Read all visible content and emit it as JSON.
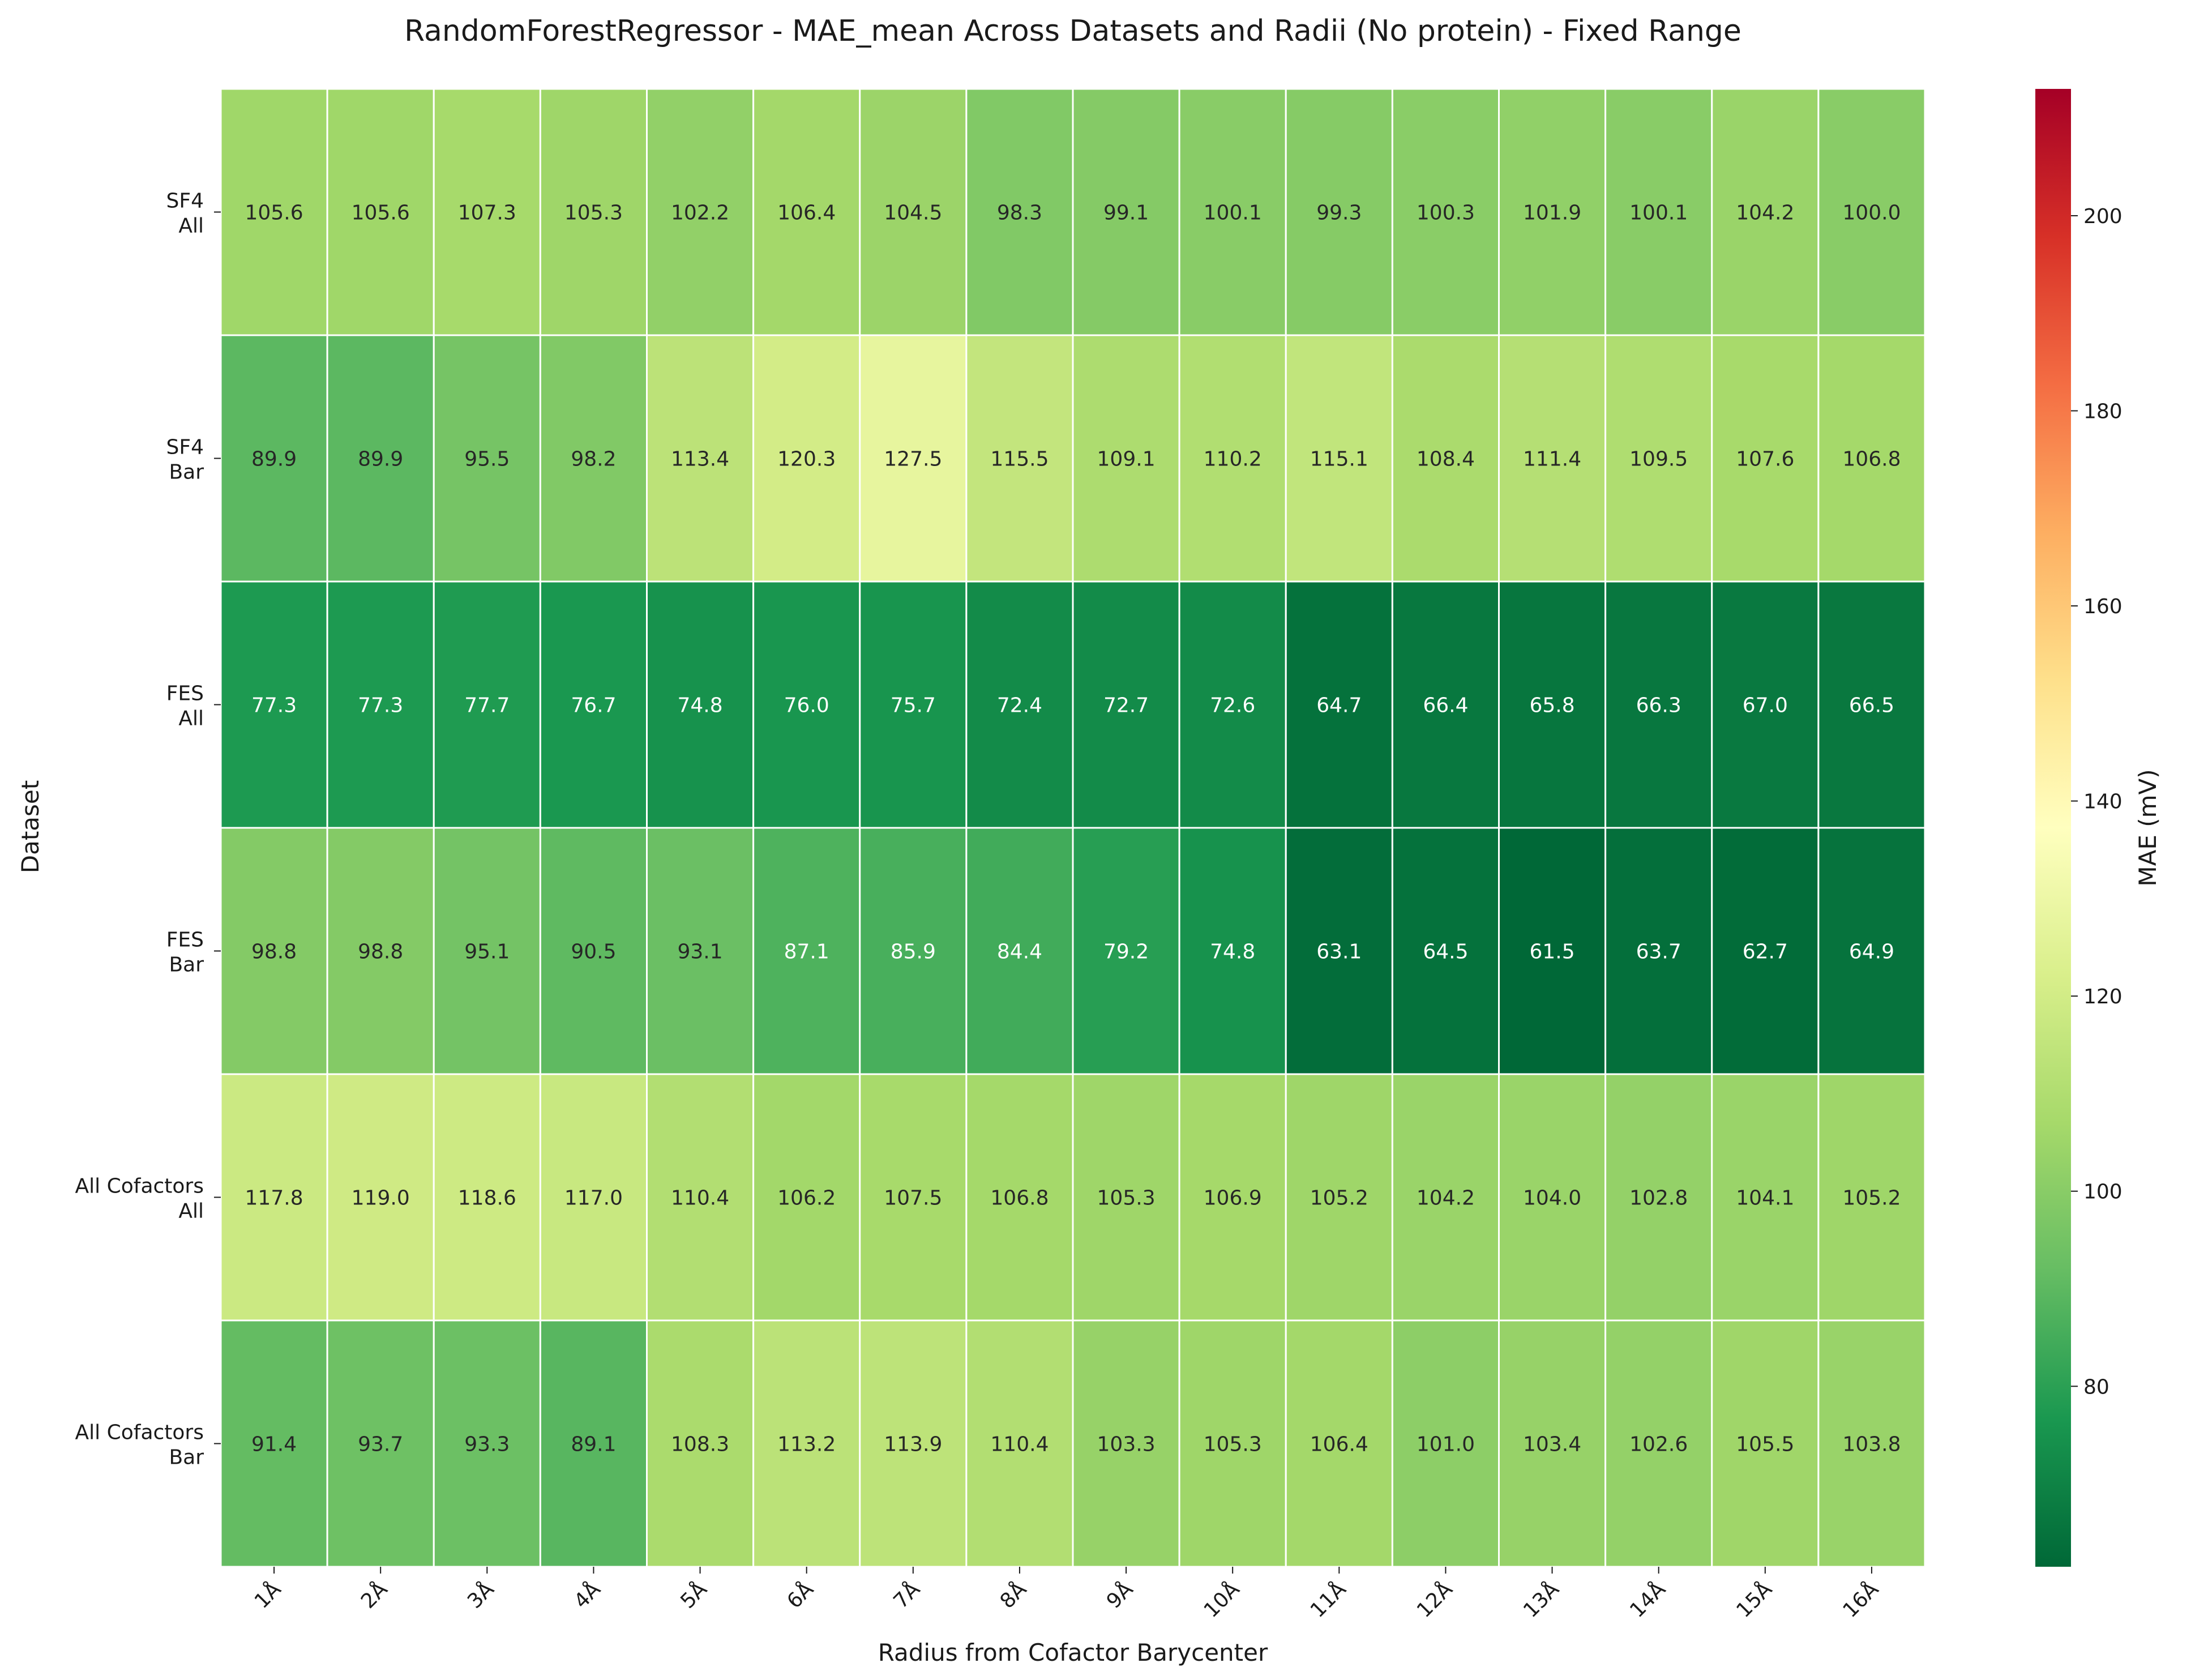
{
  "chart_data": {
    "type": "heatmap",
    "title": "RandomForestRegressor - MAE_mean Across Datasets and Radii (No protein) - Fixed Range",
    "xlabel": "Radius from Cofactor Barycenter",
    "ylabel": "Dataset",
    "colorbar_label": "MAE (mV)",
    "colormap": "RdYlGn_r",
    "vmin": 61.5,
    "vmax": 213,
    "colorbar_ticks": [
      80,
      100,
      120,
      140,
      160,
      180,
      200
    ],
    "x_categories": [
      "1Å",
      "2Å",
      "3Å",
      "4Å",
      "5Å",
      "6Å",
      "7Å",
      "8Å",
      "9Å",
      "10Å",
      "11Å",
      "12Å",
      "13Å",
      "14Å",
      "15Å",
      "16Å"
    ],
    "y_categories": [
      {
        "line1": "SF4",
        "line2": "All"
      },
      {
        "line1": "SF4",
        "line2": "Bar"
      },
      {
        "line1": "FES",
        "line2": "All"
      },
      {
        "line1": "FES",
        "line2": "Bar"
      },
      {
        "line1": "All Cofactors",
        "line2": "All"
      },
      {
        "line1": "All Cofactors",
        "line2": "Bar"
      }
    ],
    "values": [
      [
        105.6,
        105.6,
        107.3,
        105.3,
        102.2,
        106.4,
        104.5,
        98.3,
        99.1,
        100.1,
        99.3,
        100.3,
        101.9,
        100.1,
        104.2,
        100.0
      ],
      [
        89.9,
        89.9,
        95.5,
        98.2,
        113.4,
        120.3,
        127.5,
        115.5,
        109.1,
        110.2,
        115.1,
        108.4,
        111.4,
        109.5,
        107.6,
        106.8
      ],
      [
        77.3,
        77.3,
        77.7,
        76.7,
        74.8,
        76.0,
        75.7,
        72.4,
        72.7,
        72.6,
        64.7,
        66.4,
        65.8,
        66.3,
        67.0,
        66.5
      ],
      [
        98.8,
        98.8,
        95.1,
        90.5,
        93.1,
        87.1,
        85.9,
        84.4,
        79.2,
        74.8,
        63.1,
        64.5,
        61.5,
        63.7,
        62.7,
        64.9
      ],
      [
        117.8,
        119.0,
        118.6,
        117.0,
        110.4,
        106.2,
        107.5,
        106.8,
        105.3,
        106.9,
        105.2,
        104.2,
        104.0,
        102.8,
        104.1,
        105.2
      ],
      [
        91.4,
        93.7,
        93.3,
        89.1,
        108.3,
        113.2,
        113.9,
        110.4,
        103.3,
        105.3,
        106.4,
        101.0,
        103.4,
        102.6,
        105.5,
        103.8
      ]
    ],
    "grid": true,
    "legend": "colorbar-right"
  }
}
